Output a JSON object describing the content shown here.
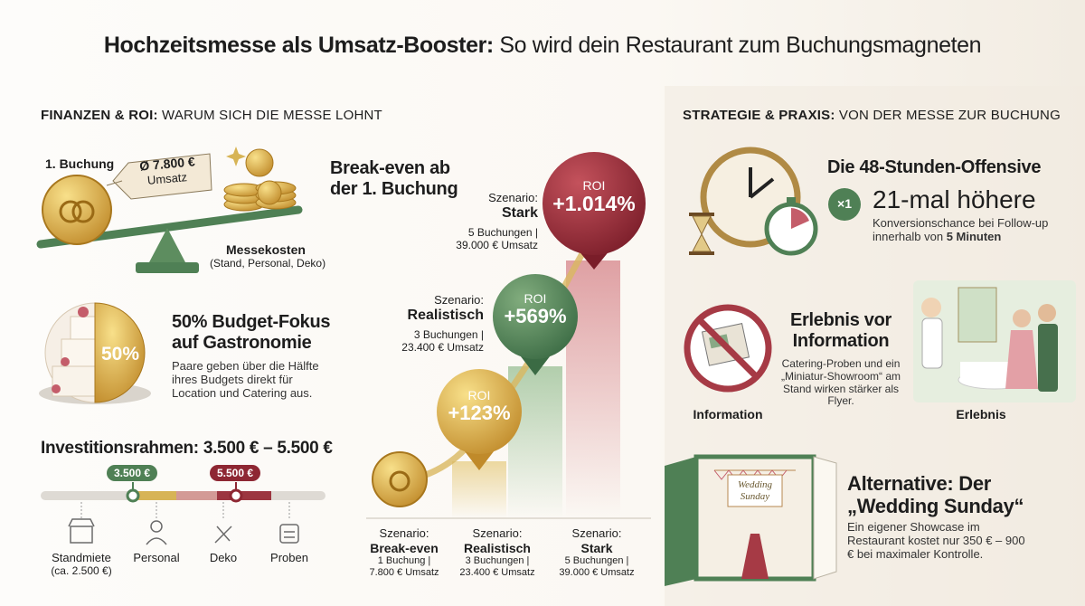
{
  "title": {
    "bold": "Hochzeitsmesse als Umsatz-Booster:",
    "rest": "So wird dein Restaurant zum Buchungsmagneten"
  },
  "finance": {
    "heading": {
      "bold": "FINANZEN & ROI:",
      "rest": "WARUM SICH DIE MESSE LOHNT"
    },
    "scale": {
      "booking": "1. Buchung",
      "tag_value": "Ø 7.800 €",
      "tag_label": "Umsatz",
      "costs": "Messekosten",
      "costs_detail": "(Stand, Personal, Deko)"
    },
    "budget": {
      "pie_label": "50%",
      "title": "50% Budget-Fokus auf Gastronomie",
      "text": "Paare geben über die Hälfte ihres Budgets direkt für Location und Catering aus."
    },
    "investment": {
      "title": "Investitionsrahmen: 3.500 € – 5.500 €",
      "min": "3.500 €",
      "max": "5.500 €",
      "items": [
        {
          "label": "Standmiete",
          "detail": "(ca. 2.500 €)"
        },
        {
          "label": "Personal"
        },
        {
          "label": "Deko"
        },
        {
          "label": "Proben"
        }
      ]
    }
  },
  "roi": {
    "title": "Break-even ab der 1. Buchung",
    "bubbles": [
      {
        "label": "ROI",
        "value": "+123%"
      },
      {
        "label": "ROI",
        "value": "+569%"
      },
      {
        "label": "ROI",
        "value": "+1.014%"
      }
    ],
    "scenarios": [
      {
        "label": "Szenario:",
        "name": "Break-even",
        "detail": "1 Buchung | 7.800 € Umsatz"
      },
      {
        "label": "Szenario:",
        "name": "Realistisch",
        "detail": "3 Buchungen | 23.400 € Umsatz"
      },
      {
        "label": "Szenario:",
        "name": "Stark",
        "detail": "5 Buchungen | 39.000 € Umsatz"
      }
    ]
  },
  "strategy": {
    "heading": {
      "bold": "STRATEGIE & PRAXIS:",
      "rest": "VON DER MESSE ZUR BUCHUNG"
    },
    "offensive": {
      "title": "Die 48-Stunden-Offensive",
      "badge": "×1",
      "headline": "21-mal höhere",
      "text": "Konversionschance bei Follow-up innerhalb von",
      "highlight": "5 Minuten"
    },
    "experience": {
      "title": "Erlebnis vor Information",
      "text": "Catering-Proben und ein „Miniatur-Showroom“ am Stand wirken stärker als Flyer.",
      "left_label": "Information",
      "right_label": "Erlebnis"
    },
    "sunday": {
      "title": "Alternative: Der „Wedding Sunday“",
      "sign": "Wedding Sunday",
      "text": "Ein eigener Showcase im Restaurant kostet nur 350 € – 900 € bei maximaler Kontrolle."
    }
  }
}
